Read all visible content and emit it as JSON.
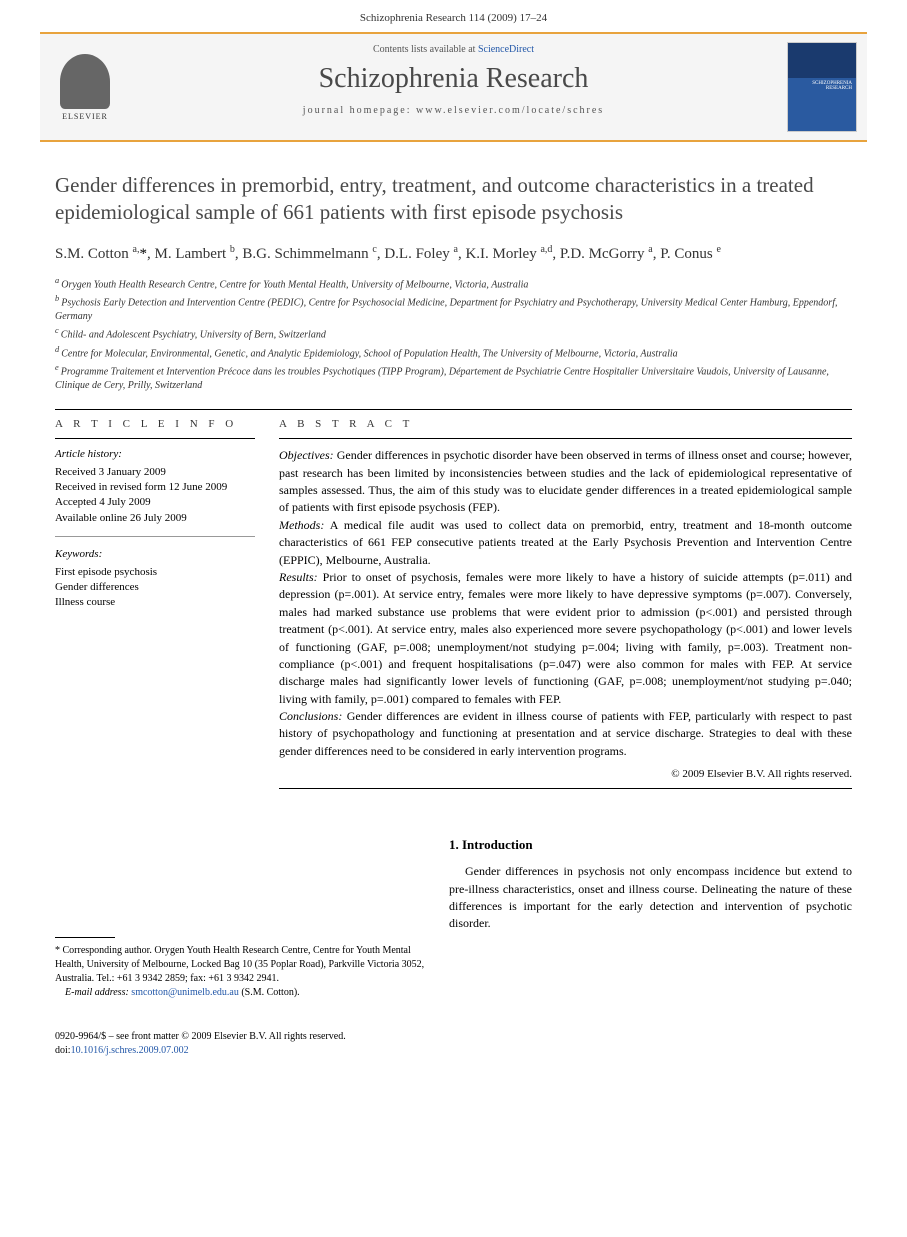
{
  "header": {
    "citation": "Schizophrenia Research 114 (2009) 17–24"
  },
  "banner": {
    "contents_prefix": "Contents lists available at ",
    "contents_link": "ScienceDirect",
    "journal_name": "Schizophrenia Research",
    "homepage_prefix": "journal homepage: ",
    "homepage_url": "www.elsevier.com/locate/schres",
    "publisher": "ELSEVIER"
  },
  "article": {
    "title": "Gender differences in premorbid, entry, treatment, and outcome characteristics in a treated epidemiological sample of 661 patients with first episode psychosis",
    "authors_html": "S.M. Cotton <sup>a,</sup><span class='corr-star'>*</span>, M. Lambert <sup>b</sup>, B.G. Schimmelmann <sup>c</sup>, D.L. Foley <sup>a</sup>, K.I. Morley <sup>a,d</sup>, P.D. McGorry <sup>a</sup>, P. Conus <sup>e</sup>",
    "affiliations": [
      "a Orygen Youth Health Research Centre, Centre for Youth Mental Health, University of Melbourne, Victoria, Australia",
      "b Psychosis Early Detection and Intervention Centre (PEDIC), Centre for Psychosocial Medicine, Department for Psychiatry and Psychotherapy, University Medical Center Hamburg, Eppendorf, Germany",
      "c Child- and Adolescent Psychiatry, University of Bern, Switzerland",
      "d Centre for Molecular, Environmental, Genetic, and Analytic Epidemiology, School of Population Health, The University of Melbourne, Victoria, Australia",
      "e Programme Traitement et Intervention Précoce dans les troubles Psychotiques (TIPP Program), Département de Psychiatrie Centre Hospitalier Universitaire Vaudois, University of Lausanne, Clinique de Cery, Prilly, Switzerland"
    ]
  },
  "article_info": {
    "label": "A R T I C L E   I N F O",
    "history_head": "Article history:",
    "history": [
      "Received 3 January 2009",
      "Received in revised form 12 June 2009",
      "Accepted 4 July 2009",
      "Available online 26 July 2009"
    ],
    "keywords_head": "Keywords:",
    "keywords": [
      "First episode psychosis",
      "Gender differences",
      "Illness course"
    ]
  },
  "abstract": {
    "label": "A B S T R A C T",
    "objectives_head": "Objectives:",
    "objectives": " Gender differences in psychotic disorder have been observed in terms of illness onset and course; however, past research has been limited by inconsistencies between studies and the lack of epidemiological representative of samples assessed. Thus, the aim of this study was to elucidate gender differences in a treated epidemiological sample of patients with first episode psychosis (FEP).",
    "methods_head": "Methods:",
    "methods": " A medical file audit was used to collect data on premorbid, entry, treatment and 18-month outcome characteristics of 661 FEP consecutive patients treated at the Early Psychosis Prevention and Intervention Centre (EPPIC), Melbourne, Australia.",
    "results_head": "Results:",
    "results": " Prior to onset of psychosis, females were more likely to have a history of suicide attempts (p=.011) and depression (p=.001). At service entry, females were more likely to have depressive symptoms (p=.007). Conversely, males had marked substance use problems that were evident prior to admission (p<.001) and persisted through treatment (p<.001). At service entry, males also experienced more severe psychopathology (p<.001) and lower levels of functioning (GAF, p=.008; unemployment/not studying p=.004; living with family, p=.003). Treatment non-compliance (p<.001) and frequent hospitalisations (p=.047) were also common for males with FEP. At service discharge males had significantly lower levels of functioning (GAF, p=.008; unemployment/not studying p=.040; living with family, p=.001) compared to females with FEP.",
    "conclusions_head": "Conclusions:",
    "conclusions": " Gender differences are evident in illness course of patients with FEP, particularly with respect to past history of psychopathology and functioning at presentation and at service discharge. Strategies to deal with these gender differences need to be considered in early intervention programs.",
    "copyright": "© 2009 Elsevier B.V. All rights reserved."
  },
  "introduction": {
    "heading": "1. Introduction",
    "paragraph": "Gender differences in psychosis not only encompass incidence but extend to pre-illness characteristics, onset and illness course. Delineating the nature of these differences is important for the early detection and intervention of psychotic disorder."
  },
  "corresponding": {
    "star": "*",
    "text": " Corresponding author. Orygen Youth Health Research Centre, Centre for Youth Mental Health, University of Melbourne, Locked Bag 10 (35 Poplar Road), Parkville Victoria 3052, Australia. Tel.: +61 3 9342 2859; fax: +61 3 9342 2941.",
    "email_label": "E-mail address:",
    "email": " smcotton@unimelb.edu.au ",
    "email_suffix": "(S.M. Cotton)."
  },
  "footer": {
    "issn_line": "0920-9964/$ – see front matter © 2009 Elsevier B.V. All rights reserved.",
    "doi_prefix": "doi:",
    "doi": "10.1016/j.schres.2009.07.002"
  },
  "colors": {
    "accent_orange": "#e8a33d",
    "link_blue": "#2257a8",
    "heading_gray": "#494949"
  }
}
